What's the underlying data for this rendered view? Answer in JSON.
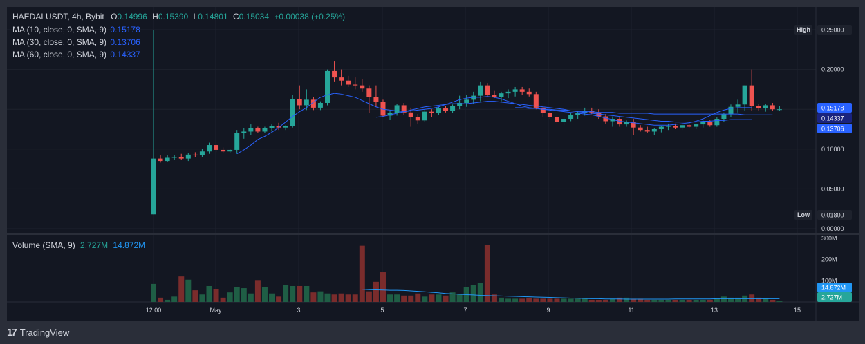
{
  "header": {
    "symbol": "HAEDALUSDT, 4h, Bybit",
    "o_label": "O",
    "o_value": "0.14996",
    "h_label": "H",
    "h_value": "0.15390",
    "l_label": "L",
    "l_value": "0.14801",
    "c_label": "C",
    "c_value": "0.15034",
    "change": "+0.00038 (+0.25%)"
  },
  "indicators": [
    {
      "label": "MA (10, close, 0, SMA, 9)",
      "value": "0.15178",
      "color": "#2962ff"
    },
    {
      "label": "MA (30, close, 0, SMA, 9)",
      "value": "0.13706",
      "color": "#2962ff"
    },
    {
      "label": "MA (60, close, 0, SMA, 9)",
      "value": "0.14337",
      "color": "#2962ff"
    }
  ],
  "volume_legend": {
    "label": "Volume (SMA, 9)",
    "value1": "2.727M",
    "value2": "14.872M"
  },
  "branding": {
    "text": "TradingView",
    "icon": "tradingview-logo-icon"
  },
  "colors": {
    "up": "#26a69a",
    "down": "#ef5350",
    "up_vol": "#1f5e45",
    "down_vol": "#7a2c2c",
    "ma": "#2962ff",
    "vol_sma": "#2196f3",
    "background": "#131722"
  },
  "chart_data": {
    "type": "candlestick",
    "price_axis": {
      "ticks": [
        "0.25000",
        "0.20000",
        "0.15000",
        "0.10000",
        "0.05000",
        "0.00000"
      ],
      "range": [
        0,
        0.25
      ]
    },
    "volume_axis": {
      "ticks": [
        "300M",
        "200M",
        "100M"
      ],
      "range": [
        0,
        300
      ]
    },
    "x_ticks": [
      "12:00",
      "May",
      "3",
      "5",
      "7",
      "9",
      "11",
      "13",
      "15"
    ],
    "badges": {
      "high": {
        "label": "High",
        "value": "0.25000"
      },
      "low": {
        "label": "Low",
        "value": "0.01800"
      },
      "ma10": "0.15178",
      "ma60": "0.14337",
      "ma30": "0.13706",
      "vol_sma": "14.872M",
      "vol_last": "2.727M"
    },
    "candles": [
      [
        0.018,
        0.25,
        0.018,
        0.088,
        85
      ],
      [
        0.088,
        0.092,
        0.083,
        0.085,
        20
      ],
      [
        0.085,
        0.092,
        0.084,
        0.089,
        10
      ],
      [
        0.089,
        0.092,
        0.086,
        0.09,
        25
      ],
      [
        0.09,
        0.094,
        0.086,
        0.088,
        120
      ],
      [
        0.088,
        0.095,
        0.085,
        0.093,
        105
      ],
      [
        0.093,
        0.096,
        0.09,
        0.092,
        55
      ],
      [
        0.092,
        0.1,
        0.09,
        0.097,
        35
      ],
      [
        0.097,
        0.108,
        0.094,
        0.105,
        75
      ],
      [
        0.105,
        0.106,
        0.096,
        0.099,
        60
      ],
      [
        0.099,
        0.102,
        0.095,
        0.097,
        20
      ],
      [
        0.097,
        0.1,
        0.095,
        0.099,
        45
      ],
      [
        0.099,
        0.124,
        0.094,
        0.12,
        70
      ],
      [
        0.12,
        0.126,
        0.113,
        0.122,
        65
      ],
      [
        0.122,
        0.131,
        0.118,
        0.126,
        40
      ],
      [
        0.126,
        0.128,
        0.12,
        0.122,
        100
      ],
      [
        0.122,
        0.128,
        0.12,
        0.126,
        70
      ],
      [
        0.126,
        0.131,
        0.122,
        0.129,
        40
      ],
      [
        0.129,
        0.133,
        0.124,
        0.127,
        25
      ],
      [
        0.127,
        0.13,
        0.124,
        0.129,
        80
      ],
      [
        0.129,
        0.168,
        0.127,
        0.163,
        75
      ],
      [
        0.163,
        0.18,
        0.15,
        0.155,
        75
      ],
      [
        0.155,
        0.175,
        0.149,
        0.162,
        75
      ],
      [
        0.162,
        0.165,
        0.149,
        0.152,
        45
      ],
      [
        0.152,
        0.16,
        0.149,
        0.158,
        50
      ],
      [
        0.158,
        0.2,
        0.155,
        0.198,
        40
      ],
      [
        0.198,
        0.21,
        0.185,
        0.19,
        35
      ],
      [
        0.19,
        0.2,
        0.18,
        0.186,
        40
      ],
      [
        0.186,
        0.192,
        0.178,
        0.181,
        35
      ],
      [
        0.181,
        0.19,
        0.175,
        0.18,
        35
      ],
      [
        0.18,
        0.188,
        0.172,
        0.176,
        265
      ],
      [
        0.176,
        0.18,
        0.145,
        0.165,
        50
      ],
      [
        0.165,
        0.18,
        0.153,
        0.159,
        95
      ],
      [
        0.159,
        0.162,
        0.14,
        0.142,
        140
      ],
      [
        0.142,
        0.148,
        0.137,
        0.145,
        35
      ],
      [
        0.145,
        0.157,
        0.142,
        0.155,
        35
      ],
      [
        0.155,
        0.158,
        0.143,
        0.146,
        30
      ],
      [
        0.146,
        0.152,
        0.128,
        0.14,
        30
      ],
      [
        0.14,
        0.144,
        0.132,
        0.136,
        40
      ],
      [
        0.136,
        0.15,
        0.134,
        0.147,
        25
      ],
      [
        0.147,
        0.15,
        0.14,
        0.145,
        35
      ],
      [
        0.145,
        0.153,
        0.143,
        0.151,
        35
      ],
      [
        0.151,
        0.154,
        0.146,
        0.148,
        30
      ],
      [
        0.148,
        0.156,
        0.145,
        0.154,
        45
      ],
      [
        0.154,
        0.167,
        0.15,
        0.158,
        35
      ],
      [
        0.158,
        0.168,
        0.153,
        0.162,
        70
      ],
      [
        0.162,
        0.172,
        0.157,
        0.167,
        80
      ],
      [
        0.167,
        0.185,
        0.16,
        0.18,
        90
      ],
      [
        0.18,
        0.183,
        0.165,
        0.168,
        270
      ],
      [
        0.168,
        0.173,
        0.164,
        0.165,
        35
      ],
      [
        0.165,
        0.172,
        0.16,
        0.17,
        20
      ],
      [
        0.17,
        0.175,
        0.164,
        0.172,
        15
      ],
      [
        0.172,
        0.178,
        0.166,
        0.175,
        15
      ],
      [
        0.175,
        0.178,
        0.168,
        0.172,
        15
      ],
      [
        0.172,
        0.176,
        0.166,
        0.169,
        20
      ],
      [
        0.169,
        0.172,
        0.15,
        0.152,
        15
      ],
      [
        0.152,
        0.154,
        0.14,
        0.145,
        15
      ],
      [
        0.145,
        0.15,
        0.138,
        0.14,
        15
      ],
      [
        0.14,
        0.142,
        0.132,
        0.134,
        15
      ],
      [
        0.134,
        0.14,
        0.13,
        0.138,
        15
      ],
      [
        0.138,
        0.146,
        0.135,
        0.143,
        15
      ],
      [
        0.143,
        0.148,
        0.138,
        0.145,
        15
      ],
      [
        0.145,
        0.152,
        0.142,
        0.148,
        15
      ],
      [
        0.148,
        0.152,
        0.144,
        0.146,
        10
      ],
      [
        0.146,
        0.15,
        0.138,
        0.141,
        10
      ],
      [
        0.141,
        0.144,
        0.132,
        0.135,
        10
      ],
      [
        0.135,
        0.141,
        0.128,
        0.138,
        15
      ],
      [
        0.138,
        0.14,
        0.128,
        0.131,
        20
      ],
      [
        0.131,
        0.136,
        0.128,
        0.134,
        20
      ],
      [
        0.134,
        0.138,
        0.118,
        0.127,
        15
      ],
      [
        0.127,
        0.13,
        0.122,
        0.124,
        15
      ],
      [
        0.124,
        0.128,
        0.12,
        0.122,
        10
      ],
      [
        0.122,
        0.126,
        0.118,
        0.125,
        10
      ],
      [
        0.125,
        0.129,
        0.121,
        0.128,
        10
      ],
      [
        0.128,
        0.132,
        0.124,
        0.129,
        10
      ],
      [
        0.129,
        0.132,
        0.125,
        0.127,
        10
      ],
      [
        0.127,
        0.131,
        0.124,
        0.13,
        10
      ],
      [
        0.13,
        0.134,
        0.126,
        0.128,
        10
      ],
      [
        0.128,
        0.132,
        0.125,
        0.131,
        10
      ],
      [
        0.131,
        0.136,
        0.127,
        0.134,
        10
      ],
      [
        0.134,
        0.137,
        0.128,
        0.13,
        10
      ],
      [
        0.13,
        0.14,
        0.128,
        0.138,
        15
      ],
      [
        0.138,
        0.146,
        0.134,
        0.144,
        25
      ],
      [
        0.144,
        0.156,
        0.14,
        0.153,
        20
      ],
      [
        0.153,
        0.162,
        0.146,
        0.156,
        20
      ],
      [
        0.156,
        0.18,
        0.148,
        0.18,
        30
      ],
      [
        0.18,
        0.2,
        0.148,
        0.154,
        35
      ],
      [
        0.154,
        0.157,
        0.148,
        0.151,
        20
      ],
      [
        0.151,
        0.157,
        0.147,
        0.155,
        15
      ],
      [
        0.155,
        0.158,
        0.148,
        0.15,
        10
      ],
      [
        0.15,
        0.154,
        0.148,
        0.15,
        3
      ]
    ],
    "ma_series": [
      {
        "name": "MA (10, close, 0, SMA, 9)",
        "start": 12,
        "values": [
          0.094,
          0.099,
          0.105,
          0.112,
          0.116,
          0.121,
          0.127,
          0.134,
          0.141,
          0.147,
          0.152,
          0.159,
          0.165,
          0.168,
          0.17,
          0.169,
          0.167,
          0.165,
          0.161,
          0.157,
          0.153,
          0.15,
          0.149,
          0.148,
          0.147,
          0.148,
          0.149,
          0.15,
          0.151,
          0.153,
          0.156,
          0.159,
          0.162,
          0.164,
          0.165,
          0.165,
          0.166,
          0.165,
          0.163,
          0.16,
          0.157,
          0.154,
          0.152,
          0.151,
          0.15,
          0.149,
          0.148,
          0.147,
          0.146,
          0.145,
          0.144,
          0.143,
          0.141,
          0.139,
          0.137,
          0.135,
          0.134,
          0.133,
          0.132,
          0.131,
          0.13,
          0.13,
          0.13,
          0.131,
          0.132,
          0.133,
          0.135,
          0.138,
          0.142,
          0.146,
          0.149,
          0.151,
          0.152,
          0.152,
          0.152
        ]
      },
      {
        "name": "MA (30, close, 0, SMA, 9)",
        "start": 32,
        "values": [
          0.14,
          0.141,
          0.143,
          0.145,
          0.147,
          0.149,
          0.151,
          0.153,
          0.154,
          0.155,
          0.156,
          0.157,
          0.157,
          0.157,
          0.158,
          0.159,
          0.16,
          0.16,
          0.159,
          0.158,
          0.157,
          0.156,
          0.155,
          0.154,
          0.153,
          0.152,
          0.151,
          0.15,
          0.148,
          0.147,
          0.146,
          0.145,
          0.144,
          0.143,
          0.142,
          0.141,
          0.14,
          0.139,
          0.138,
          0.137,
          0.136,
          0.135,
          0.135,
          0.134,
          0.134,
          0.134,
          0.134,
          0.135,
          0.135,
          0.136,
          0.136,
          0.137,
          0.137,
          0.137,
          0.137
        ]
      },
      {
        "name": "MA (60, close, 0, SMA, 9)",
        "start": 52,
        "values": [
          0.152,
          0.152,
          0.151,
          0.151,
          0.15,
          0.15,
          0.149,
          0.149,
          0.148,
          0.148,
          0.147,
          0.147,
          0.146,
          0.146,
          0.146,
          0.145,
          0.145,
          0.145,
          0.145,
          0.145,
          0.144,
          0.144,
          0.144,
          0.144,
          0.144,
          0.144,
          0.144,
          0.144,
          0.144,
          0.144,
          0.144,
          0.144,
          0.144,
          0.143,
          0.143,
          0.143,
          0.143,
          0.143
        ]
      }
    ],
    "volume_sma": {
      "start": 30,
      "values": [
        60,
        58,
        57,
        56,
        55,
        55,
        54,
        52,
        50,
        48,
        45,
        43,
        40,
        38,
        36,
        34,
        33,
        31,
        30,
        29,
        28,
        27,
        26,
        25,
        24,
        23,
        22,
        21,
        20,
        19,
        18,
        17,
        16,
        15,
        15,
        14,
        14,
        14,
        13,
        13,
        13,
        13,
        13,
        13,
        13,
        14,
        14,
        14,
        14,
        14,
        14,
        15,
        15,
        15,
        15,
        15,
        15,
        15,
        15,
        15,
        15
      ]
    }
  }
}
